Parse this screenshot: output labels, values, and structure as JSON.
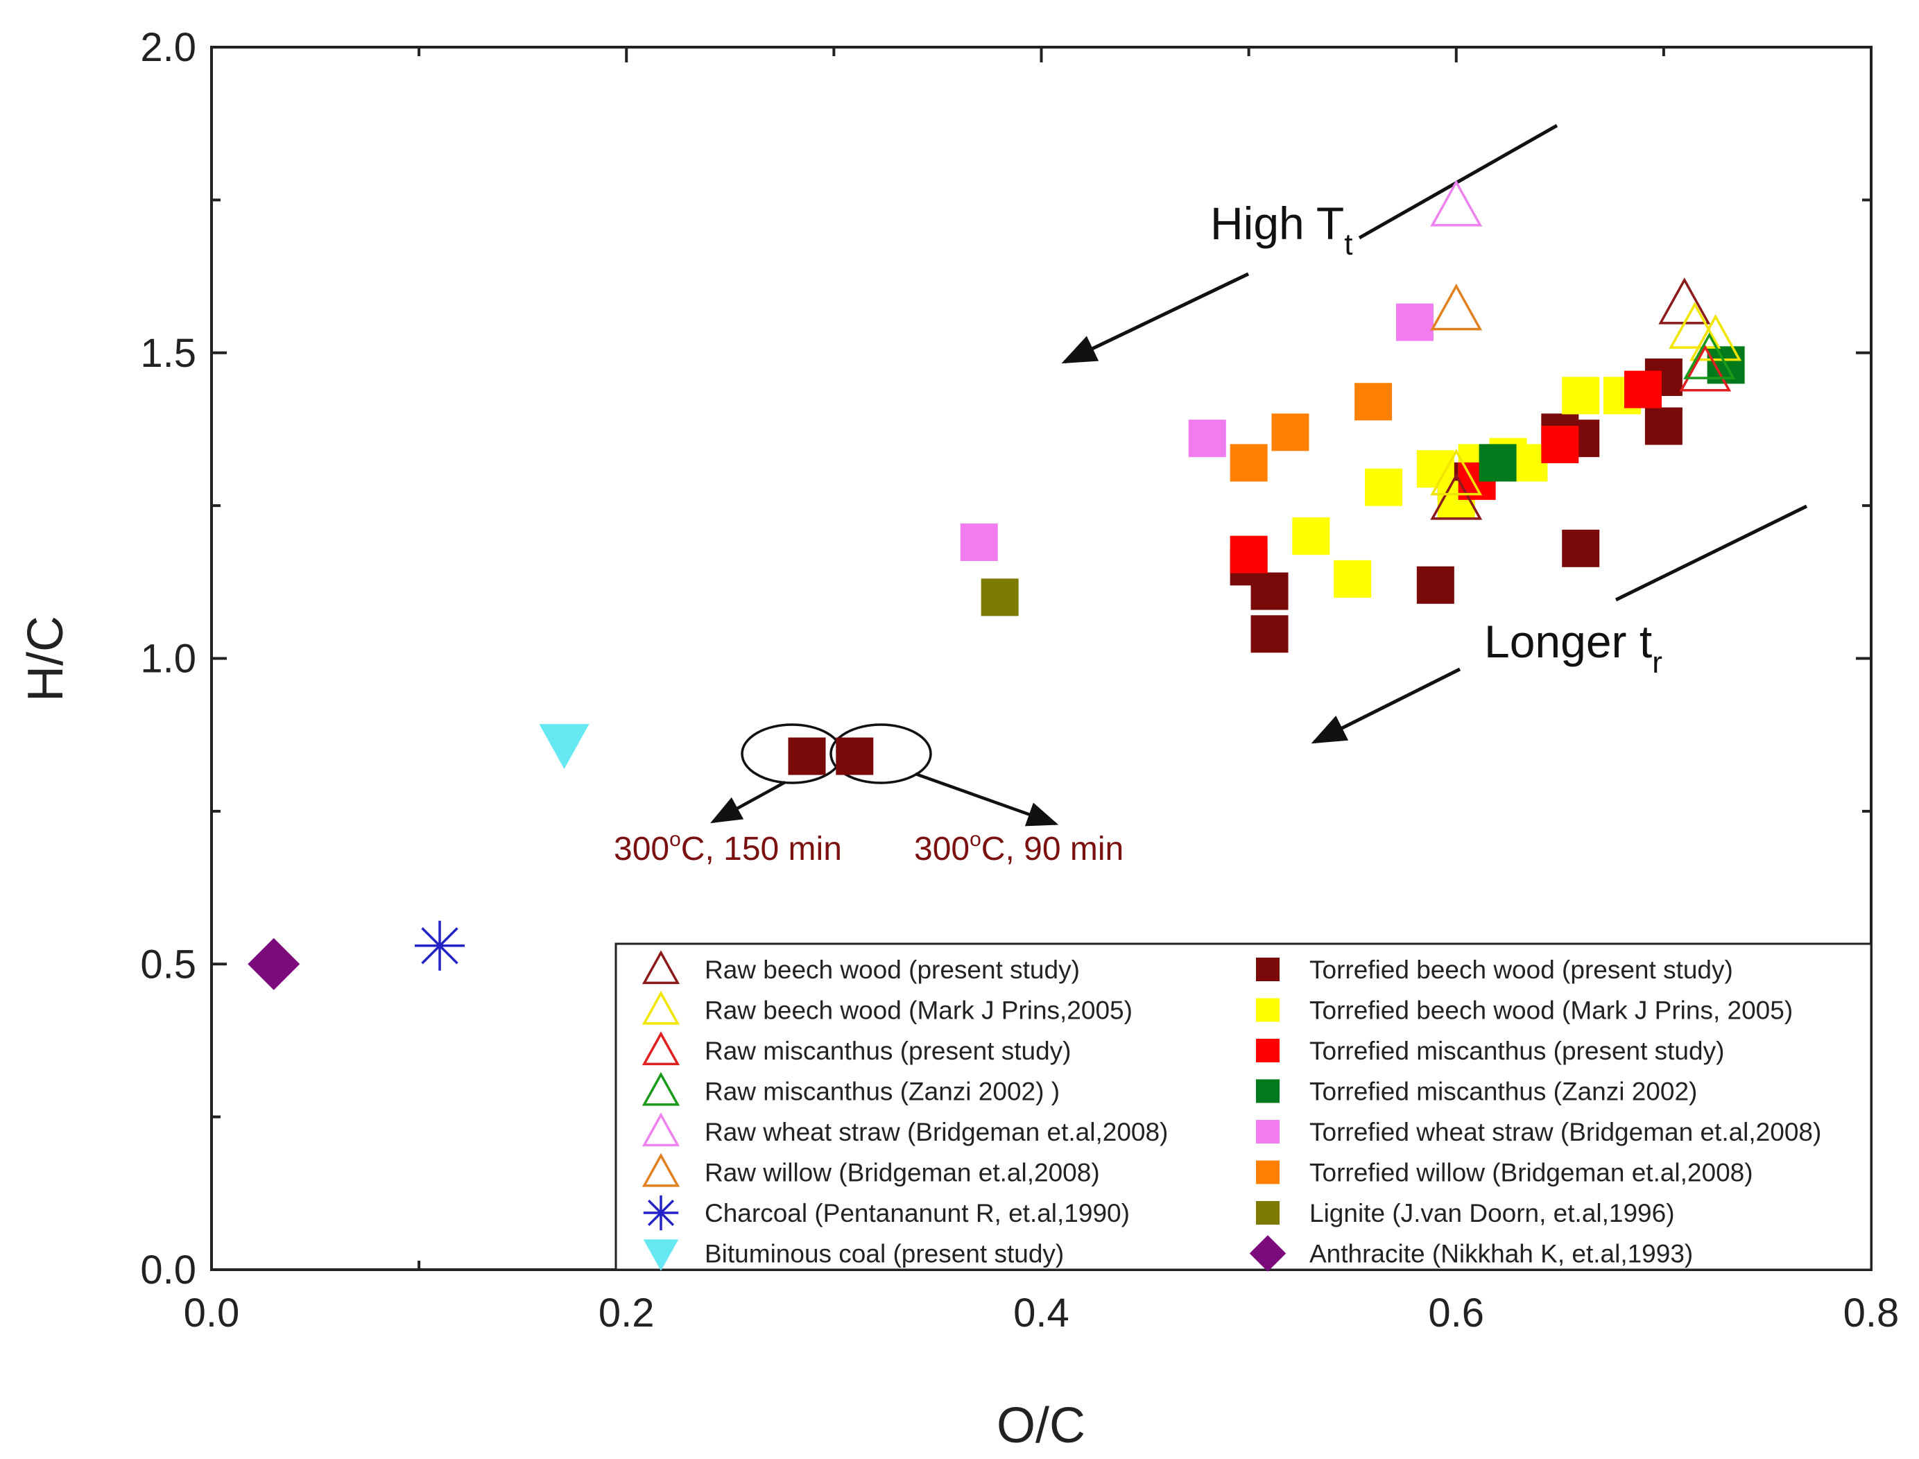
{
  "chart_data": {
    "type": "scatter",
    "xlabel": "O/C",
    "ylabel": "H/C",
    "xlim": [
      0.0,
      0.8
    ],
    "ylim": [
      0.0,
      2.0
    ],
    "x_ticks": [
      "0.0",
      "0.2",
      "0.4",
      "0.6",
      "0.8"
    ],
    "y_ticks": [
      "0.0",
      "0.5",
      "1.0",
      "1.5",
      "2.0"
    ],
    "grid": false,
    "legend_position": "bottom-right",
    "series": [
      {
        "name": "Raw beech wood  (present study)",
        "marker": "triangle-open",
        "color": "#8b1a1a",
        "points": [
          [
            0.71,
            1.58
          ],
          [
            0.6,
            1.26
          ]
        ]
      },
      {
        "name": "Raw beech wood (Mark J Prins,2005)",
        "marker": "triangle-open",
        "color": "#f2e600",
        "points": [
          [
            0.715,
            1.54
          ],
          [
            0.725,
            1.52
          ],
          [
            0.6,
            1.3
          ]
        ]
      },
      {
        "name": "Raw miscanthus  (present study)",
        "marker": "triangle-open",
        "color": "#e02020",
        "points": [
          [
            0.72,
            1.47
          ]
        ]
      },
      {
        "name": "Raw miscanthus (Zanzi 2002) )",
        "marker": "triangle-open",
        "color": "#1a9a1a",
        "points": [
          [
            0.722,
            1.49
          ]
        ]
      },
      {
        "name": "Raw wheat straw (Bridgeman et.al,2008)",
        "marker": "triangle-open",
        "color": "#ee82ee",
        "points": [
          [
            0.6,
            1.74
          ]
        ]
      },
      {
        "name": "Raw willow (Bridgeman et.al,2008)",
        "marker": "triangle-open",
        "color": "#e08020",
        "points": [
          [
            0.6,
            1.57
          ]
        ]
      },
      {
        "name": "Charcoal (Pentananunt R, et.al,1990)",
        "marker": "asterisk",
        "color": "#2323c8",
        "points": [
          [
            0.11,
            0.53
          ]
        ]
      },
      {
        "name": "Bituminous coal (present study)",
        "marker": "triangle-down",
        "color": "#66e8f2",
        "points": [
          [
            0.17,
            0.86
          ]
        ]
      },
      {
        "name": "Torrefied beech wood  (present study)",
        "marker": "square",
        "color": "#7a0a0a",
        "points": [
          [
            0.287,
            0.84
          ],
          [
            0.31,
            0.84
          ],
          [
            0.5,
            1.15
          ],
          [
            0.51,
            1.11
          ],
          [
            0.51,
            1.04
          ],
          [
            0.59,
            1.12
          ],
          [
            0.65,
            1.37
          ],
          [
            0.66,
            1.36
          ],
          [
            0.66,
            1.18
          ],
          [
            0.7,
            1.46
          ],
          [
            0.7,
            1.38
          ],
          [
            0.6,
            1.29
          ]
        ]
      },
      {
        "name": "Torrefied beech wood (Mark J Prins, 2005)",
        "marker": "square",
        "color": "#ffff00",
        "points": [
          [
            0.53,
            1.2
          ],
          [
            0.55,
            1.13
          ],
          [
            0.565,
            1.28
          ],
          [
            0.59,
            1.31
          ],
          [
            0.6,
            1.26
          ],
          [
            0.61,
            1.32
          ],
          [
            0.625,
            1.33
          ],
          [
            0.635,
            1.32
          ],
          [
            0.66,
            1.43
          ],
          [
            0.68,
            1.43
          ]
        ]
      },
      {
        "name": "Torrefied miscanthus (present study)",
        "marker": "square",
        "color": "#ff0000",
        "points": [
          [
            0.5,
            1.17
          ],
          [
            0.61,
            1.29
          ],
          [
            0.65,
            1.35
          ],
          [
            0.69,
            1.44
          ]
        ]
      },
      {
        "name": "Torrefied miscanthus (Zanzi 2002)",
        "marker": "square",
        "color": "#007a1a",
        "points": [
          [
            0.62,
            1.32
          ],
          [
            0.73,
            1.48
          ]
        ]
      },
      {
        "name": " Torrefied wheat straw (Bridgeman et.al,2008)",
        "marker": "square",
        "color": "#f07cf0",
        "points": [
          [
            0.37,
            1.19
          ],
          [
            0.48,
            1.36
          ],
          [
            0.58,
            1.55
          ]
        ]
      },
      {
        "name": "Torrefied willow (Bridgeman et.al,2008)",
        "marker": "square",
        "color": "#ff8000",
        "points": [
          [
            0.5,
            1.32
          ],
          [
            0.52,
            1.37
          ],
          [
            0.56,
            1.42
          ]
        ]
      },
      {
        "name": "Lignite (J.van Doorn, et.al,1996)",
        "marker": "square",
        "color": "#7d7a00",
        "points": [
          [
            0.38,
            1.1
          ]
        ]
      },
      {
        "name": "Anthracite (Nikkhah K, et.al,1993)",
        "marker": "diamond",
        "color": "#7b0a7b",
        "points": [
          [
            0.03,
            0.5
          ]
        ]
      }
    ],
    "annotations": {
      "high_tt": "High T",
      "high_tt_sub": "t",
      "longer_tr": "Longer t",
      "longer_tr_sub": "r",
      "label_150_pre": "300",
      "label_150_sup": "o",
      "label_150_post": "C, 150 min",
      "label_90_pre": "300",
      "label_90_sup": "o",
      "label_90_post": "C, 90 min"
    }
  }
}
